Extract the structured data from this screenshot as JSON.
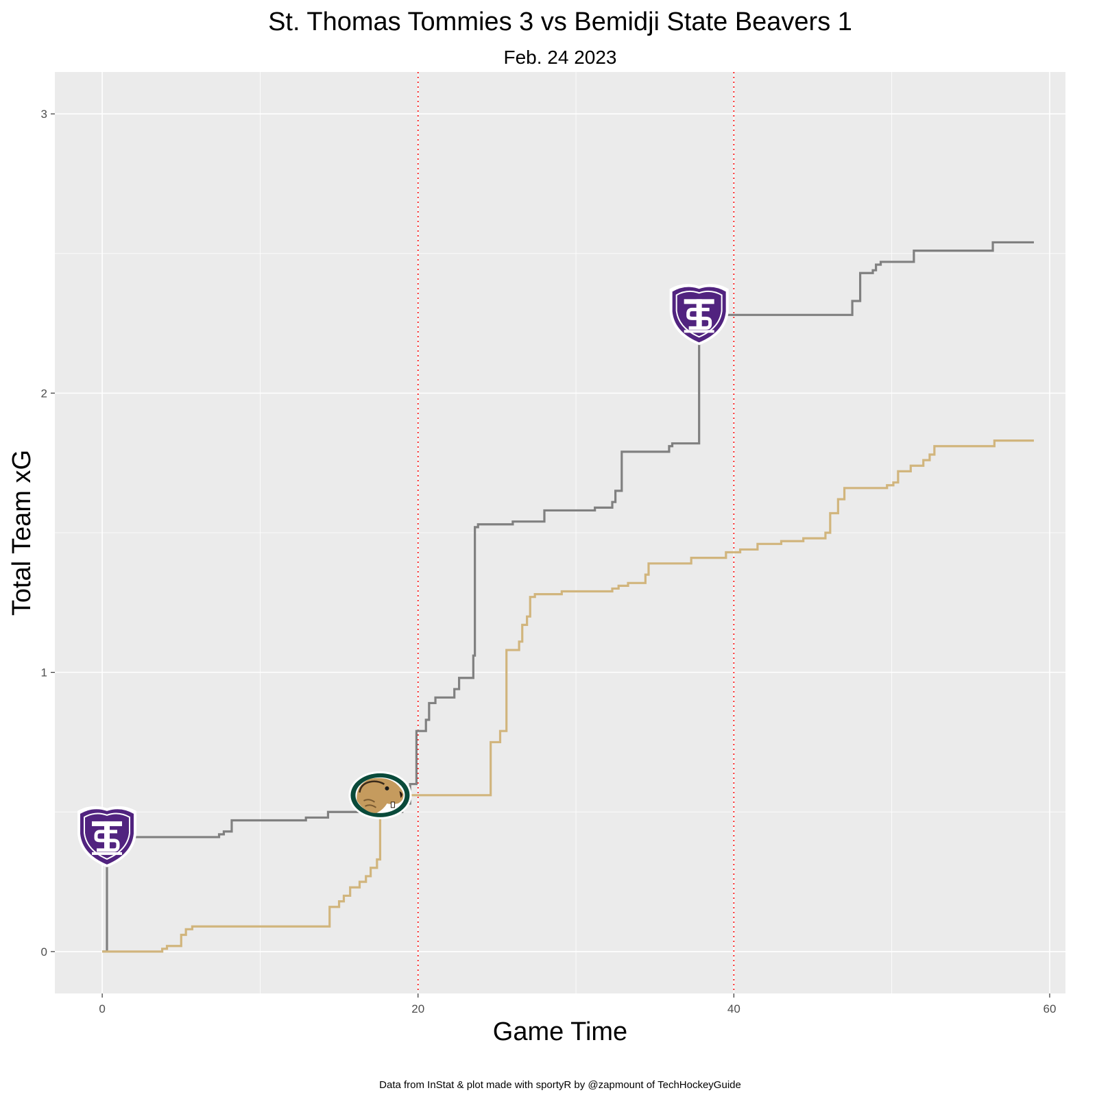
{
  "chart_data": {
    "type": "line",
    "title": "St. Thomas Tommies 3 vs Bemidji State Beavers 1",
    "subtitle": "Feb. 24 2023",
    "xlabel": "Game Time",
    "ylabel": "Total Team xG",
    "caption": "Data from InStat & plot made with sportyR by @zapmount of TechHockeyGuide",
    "xlim": [
      -3,
      61
    ],
    "ylim": [
      -0.15,
      3.15
    ],
    "x_ticks": [
      0,
      20,
      40,
      60
    ],
    "y_ticks": [
      0,
      1,
      2,
      3
    ],
    "grid": true,
    "period_lines": [
      20,
      40
    ],
    "period_line_color": "#ff0000",
    "series": [
      {
        "team": "St. Thomas",
        "color": "#808080",
        "steps": [
          [
            0.0,
            0.0
          ],
          [
            0.3,
            0.41
          ],
          [
            7.4,
            0.42
          ],
          [
            7.7,
            0.43
          ],
          [
            8.2,
            0.47
          ],
          [
            12.9,
            0.48
          ],
          [
            14.3,
            0.5
          ],
          [
            19.0,
            0.53
          ],
          [
            19.5,
            0.6
          ],
          [
            19.9,
            0.79
          ],
          [
            20.5,
            0.83
          ],
          [
            20.7,
            0.89
          ],
          [
            21.1,
            0.91
          ],
          [
            22.3,
            0.94
          ],
          [
            22.6,
            0.98
          ],
          [
            23.5,
            1.06
          ],
          [
            23.6,
            1.52
          ],
          [
            23.8,
            1.53
          ],
          [
            26.0,
            1.54
          ],
          [
            28.0,
            1.58
          ],
          [
            31.2,
            1.59
          ],
          [
            32.3,
            1.61
          ],
          [
            32.5,
            1.65
          ],
          [
            32.9,
            1.79
          ],
          [
            35.9,
            1.81
          ],
          [
            36.1,
            1.82
          ],
          [
            37.8,
            2.28
          ],
          [
            39.0,
            2.28
          ],
          [
            47.5,
            2.33
          ],
          [
            48.0,
            2.43
          ],
          [
            48.8,
            2.44
          ],
          [
            49.0,
            2.46
          ],
          [
            49.3,
            2.47
          ],
          [
            51.4,
            2.51
          ],
          [
            56.4,
            2.54
          ],
          [
            59.0,
            2.54
          ]
        ]
      },
      {
        "team": "Bemidji State",
        "color": "#d1b57d",
        "steps": [
          [
            0.0,
            0.0
          ],
          [
            3.8,
            0.01
          ],
          [
            4.1,
            0.02
          ],
          [
            5.0,
            0.06
          ],
          [
            5.3,
            0.08
          ],
          [
            5.7,
            0.09
          ],
          [
            14.4,
            0.16
          ],
          [
            15.0,
            0.18
          ],
          [
            15.3,
            0.2
          ],
          [
            15.7,
            0.23
          ],
          [
            16.3,
            0.25
          ],
          [
            16.7,
            0.27
          ],
          [
            17.0,
            0.3
          ],
          [
            17.4,
            0.33
          ],
          [
            17.6,
            0.56
          ],
          [
            24.6,
            0.75
          ],
          [
            25.2,
            0.79
          ],
          [
            25.6,
            1.08
          ],
          [
            26.4,
            1.11
          ],
          [
            26.6,
            1.17
          ],
          [
            26.9,
            1.2
          ],
          [
            27.1,
            1.27
          ],
          [
            27.4,
            1.28
          ],
          [
            29.1,
            1.29
          ],
          [
            32.3,
            1.3
          ],
          [
            32.7,
            1.31
          ],
          [
            33.3,
            1.32
          ],
          [
            34.4,
            1.35
          ],
          [
            34.6,
            1.39
          ],
          [
            37.3,
            1.41
          ],
          [
            39.5,
            1.43
          ],
          [
            40.4,
            1.44
          ],
          [
            41.5,
            1.46
          ],
          [
            43.0,
            1.47
          ],
          [
            44.4,
            1.48
          ],
          [
            45.8,
            1.5
          ],
          [
            46.1,
            1.57
          ],
          [
            46.6,
            1.62
          ],
          [
            47.0,
            1.66
          ],
          [
            49.7,
            1.67
          ],
          [
            50.1,
            1.68
          ],
          [
            50.4,
            1.72
          ],
          [
            51.2,
            1.74
          ],
          [
            52.0,
            1.76
          ],
          [
            52.4,
            1.78
          ],
          [
            52.7,
            1.81
          ],
          [
            56.5,
            1.83
          ],
          [
            59.0,
            1.83
          ]
        ]
      }
    ],
    "goal_markers": [
      {
        "team": "St. Thomas",
        "x": 0.3,
        "y": 0.41,
        "icon": "st-thomas-shield-logo"
      },
      {
        "team": "Bemidji State",
        "x": 17.6,
        "y": 0.56,
        "icon": "bemidji-beaver-logo"
      },
      {
        "team": "St. Thomas",
        "x": 37.8,
        "y": 2.28,
        "icon": "st-thomas-shield-logo"
      }
    ]
  }
}
